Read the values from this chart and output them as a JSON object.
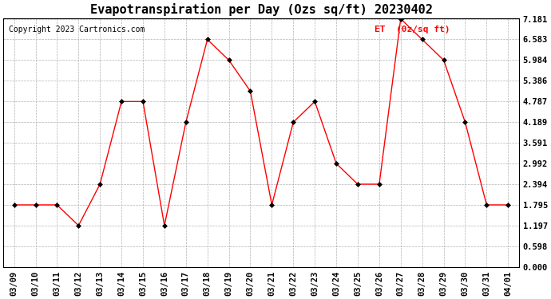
{
  "title": "Evapotranspiration per Day (Ozs sq/ft) 20230402",
  "copyright": "Copyright 2023 Cartronics.com",
  "legend_label": "ET  (0z/sq ft)",
  "x_labels": [
    "03/09",
    "03/10",
    "03/11",
    "03/12",
    "03/13",
    "03/14",
    "03/15",
    "03/16",
    "03/17",
    "03/18",
    "03/19",
    "03/20",
    "03/21",
    "03/22",
    "03/23",
    "03/24",
    "03/25",
    "03/26",
    "03/27",
    "03/28",
    "03/29",
    "03/30",
    "03/31",
    "04/01"
  ],
  "y_values": [
    1.795,
    1.795,
    1.795,
    1.197,
    2.394,
    4.787,
    4.787,
    1.197,
    4.189,
    6.583,
    5.984,
    5.087,
    1.795,
    4.189,
    4.787,
    2.992,
    2.394,
    2.394,
    7.181,
    6.583,
    5.984,
    4.189,
    1.795,
    1.795
  ],
  "line_color": "red",
  "marker_color": "black",
  "background_color": "#ffffff",
  "grid_color": "#aaaaaa",
  "y_ticks": [
    0.0,
    0.598,
    1.197,
    1.795,
    2.394,
    2.992,
    3.591,
    4.189,
    4.787,
    5.386,
    5.984,
    6.583,
    7.181
  ],
  "y_min": 0.0,
  "y_max": 7.181,
  "title_fontsize": 11,
  "axis_fontsize": 7.5,
  "copyright_fontsize": 7,
  "legend_fontsize": 8
}
